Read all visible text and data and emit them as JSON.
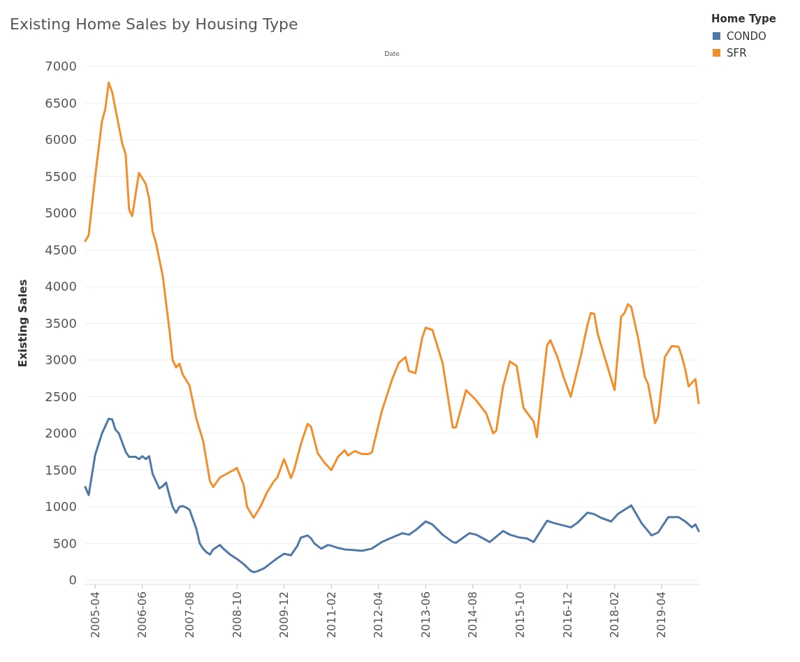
{
  "chart_data": {
    "type": "line",
    "title": "Existing Home Sales by Housing Type",
    "xlabel": "Date",
    "ylabel": "Existing Sales",
    "legend_title": "Home Type",
    "legend": "top right",
    "grid": "y",
    "xlim": [
      "2005-01",
      "2020-03"
    ],
    "xticks": [
      "2005-04",
      "2006-06",
      "2007-08",
      "2008-10",
      "2009-12",
      "2011-02",
      "2012-04",
      "2013-06",
      "2014-08",
      "2015-10",
      "2016-12",
      "2018-02",
      "2019-04"
    ],
    "ylim": [
      0,
      7000
    ],
    "yticks": [
      0,
      500,
      1000,
      1500,
      2000,
      2500,
      3000,
      3500,
      4000,
      4500,
      5000,
      5500,
      6000,
      6500,
      7000
    ],
    "series": [
      {
        "name": "CONDO",
        "color": "#4e79a7",
        "x": [
          "2005-01",
          "2005-02",
          "2005-04",
          "2005-06",
          "2005-08",
          "2005-09",
          "2005-10",
          "2005-11",
          "2006-01",
          "2006-02",
          "2006-04",
          "2006-05",
          "2006-06",
          "2006-07",
          "2006-08",
          "2006-09",
          "2006-10",
          "2006-11",
          "2006-12",
          "2007-01",
          "2007-02",
          "2007-03",
          "2007-04",
          "2007-05",
          "2007-06",
          "2007-07",
          "2007-08",
          "2007-10",
          "2007-11",
          "2007-12",
          "2008-01",
          "2008-02",
          "2008-03",
          "2008-05",
          "2008-06",
          "2008-08",
          "2008-10",
          "2008-12",
          "2009-02",
          "2009-03",
          "2009-04",
          "2009-06",
          "2009-08",
          "2009-10",
          "2009-12",
          "2010-02",
          "2010-04",
          "2010-05",
          "2010-07",
          "2010-08",
          "2010-09",
          "2010-11",
          "2011-01",
          "2011-02",
          "2011-04",
          "2011-06",
          "2011-09",
          "2011-11",
          "2012-02",
          "2012-05",
          "2012-07",
          "2012-11",
          "2013-01",
          "2013-03",
          "2013-06",
          "2013-08",
          "2013-11",
          "2014-02",
          "2014-03",
          "2014-07",
          "2014-09",
          "2015-01",
          "2015-05",
          "2015-07",
          "2015-10",
          "2015-12",
          "2016-02",
          "2016-06",
          "2016-08",
          "2017-01",
          "2017-03",
          "2017-06",
          "2017-08",
          "2017-10",
          "2018-01",
          "2018-03",
          "2018-07",
          "2018-10",
          "2019-01",
          "2019-03",
          "2019-06",
          "2019-09",
          "2019-11",
          "2020-01",
          "2020-02",
          "2020-03"
        ],
        "values": [
          1270,
          1160,
          1710,
          2000,
          2200,
          2190,
          2050,
          2000,
          1750,
          1680,
          1680,
          1650,
          1690,
          1650,
          1690,
          1450,
          1350,
          1250,
          1280,
          1330,
          1150,
          1000,
          920,
          1000,
          1010,
          990,
          960,
          700,
          500,
          430,
          380,
          350,
          420,
          480,
          430,
          350,
          290,
          220,
          130,
          110,
          120,
          160,
          230,
          300,
          360,
          340,
          470,
          580,
          610,
          570,
          500,
          430,
          480,
          470,
          440,
          420,
          410,
          400,
          430,
          520,
          560,
          640,
          620,
          680,
          800,
          760,
          620,
          520,
          510,
          640,
          620,
          520,
          670,
          620,
          580,
          570,
          520,
          810,
          780,
          720,
          780,
          920,
          900,
          850,
          800,
          900,
          1020,
          780,
          610,
          650,
          860,
          860,
          800,
          720,
          760,
          670
        ]
      },
      {
        "name": "SFR",
        "color": "#f28e2b",
        "x": [
          "2005-01",
          "2005-02",
          "2005-04",
          "2005-06",
          "2005-07",
          "2005-08",
          "2005-09",
          "2005-12",
          "2006-01",
          "2006-02",
          "2006-03",
          "2006-05",
          "2006-07",
          "2006-08",
          "2006-09",
          "2006-10",
          "2006-12",
          "2007-02",
          "2007-03",
          "2007-04",
          "2007-05",
          "2007-06",
          "2007-08",
          "2007-10",
          "2007-12",
          "2008-02",
          "2008-03",
          "2008-05",
          "2008-07",
          "2008-09",
          "2008-10",
          "2008-12",
          "2009-01",
          "2009-03",
          "2009-05",
          "2009-07",
          "2009-09",
          "2009-10",
          "2009-12",
          "2010-02",
          "2010-03",
          "2010-05",
          "2010-07",
          "2010-08",
          "2010-10",
          "2010-12",
          "2011-02",
          "2011-04",
          "2011-06",
          "2011-07",
          "2011-09",
          "2011-11",
          "2012-01",
          "2012-02",
          "2012-05",
          "2012-08",
          "2012-10",
          "2012-12",
          "2013-01",
          "2013-03",
          "2013-05",
          "2013-06",
          "2013-08",
          "2013-11",
          "2014-02",
          "2014-03",
          "2014-06",
          "2014-09",
          "2014-12",
          "2015-02",
          "2015-03",
          "2015-05",
          "2015-07",
          "2015-09",
          "2015-11",
          "2016-02",
          "2016-03",
          "2016-06",
          "2016-07",
          "2016-09",
          "2016-11",
          "2017-01",
          "2017-04",
          "2017-06",
          "2017-07",
          "2017-08",
          "2017-09",
          "2017-11",
          "2018-02",
          "2018-04",
          "2018-05",
          "2018-06",
          "2018-07",
          "2018-09",
          "2018-11",
          "2018-12",
          "2019-02",
          "2019-03",
          "2019-05",
          "2019-07",
          "2019-09",
          "2019-10",
          "2019-11",
          "2019-12",
          "2020-02",
          "2020-03"
        ],
        "values": [
          4620,
          4700,
          5500,
          6250,
          6420,
          6780,
          6650,
          5950,
          5800,
          5050,
          4960,
          5550,
          5400,
          5200,
          4750,
          4600,
          4150,
          3400,
          3000,
          2900,
          2950,
          2800,
          2650,
          2200,
          1900,
          1350,
          1270,
          1400,
          1450,
          1500,
          1530,
          1300,
          1000,
          850,
          1000,
          1200,
          1350,
          1400,
          1650,
          1390,
          1500,
          1850,
          2130,
          2090,
          1730,
          1600,
          1500,
          1680,
          1770,
          1700,
          1760,
          1720,
          1720,
          1740,
          2300,
          2730,
          2960,
          3040,
          2850,
          2820,
          3300,
          3440,
          3410,
          2960,
          2080,
          2080,
          2590,
          2450,
          2270,
          2000,
          2040,
          2640,
          2980,
          2920,
          2350,
          2160,
          1950,
          3200,
          3270,
          3050,
          2750,
          2500,
          3050,
          3480,
          3640,
          3630,
          3360,
          3050,
          2590,
          3590,
          3640,
          3760,
          3720,
          3300,
          2770,
          2670,
          2140,
          2230,
          3040,
          3190,
          3180,
          3050,
          2870,
          2640,
          2740,
          2410
        ]
      }
    ]
  }
}
